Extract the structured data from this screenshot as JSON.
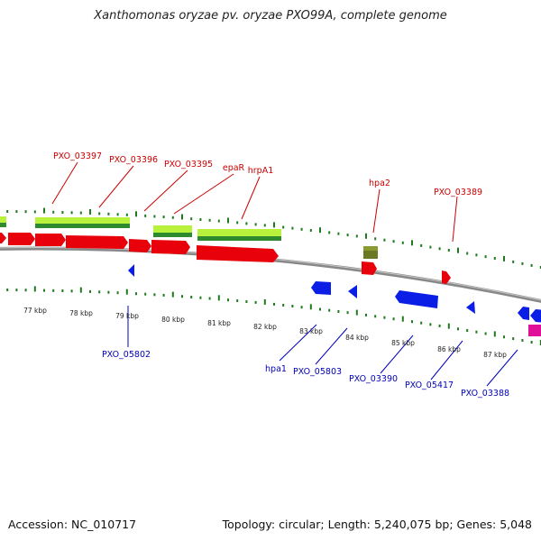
{
  "title": "Xanthomonas oryzae pv. oryzae PXO99A, complete genome",
  "footer": {
    "accession": "Accession: NC_010717",
    "summary": "Topology: circular; Length: 5,240,075 bp; Genes: 5,048"
  },
  "scale_labels": [
    "77 kbp",
    "78 kbp",
    "79 kbp",
    "80 kbp",
    "81 kbp",
    "82 kbp",
    "83 kbp",
    "84 kbp",
    "85 kbp",
    "86 kbp",
    "87 kbp"
  ],
  "forward_gene_labels": [
    "PXO_03397",
    "PXO_03396",
    "PXO_03395",
    "epaR",
    "hrpA1",
    "hpa2",
    "PXO_03389"
  ],
  "reverse_gene_labels": [
    "PXO_05802",
    "hpa1",
    "PXO_05803",
    "PXO_03390",
    "PXO_05417",
    "PXO_03388"
  ],
  "colors": {
    "forward_gene": "#e8000a",
    "reverse_gene": "#0a1ee6",
    "cds_light": "#b9f23c",
    "cds_dark": "#2e8a2e",
    "rna_olive": "#6b7a20",
    "backbone": "#8a8a8a",
    "tick": "#1d7a1d",
    "forward_label": "#cc0000",
    "reverse_label": "#0000bb",
    "other": "#e0109a"
  }
}
